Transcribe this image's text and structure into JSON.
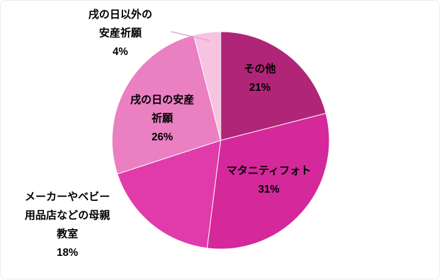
{
  "chart_data": {
    "type": "pie",
    "direction": "clockwise",
    "start_angle_deg": 0,
    "unit": "%",
    "background": "#FFFFFF",
    "legend": "none",
    "leader_line_color": "#DFA8CE",
    "slices": [
      {
        "name": "その他",
        "value": 21,
        "color": "#B02577",
        "label_lines": [
          "その他",
          "21%"
        ]
      },
      {
        "name": "マタニティフォト",
        "value": 31,
        "color": "#D4289B",
        "label_lines": [
          "マタニティフォト",
          "31%"
        ]
      },
      {
        "name": "メーカーやベビー用品店などの母親教室",
        "value": 18,
        "color": "#E13AAB",
        "label_lines": [
          "メーカーやベビー",
          "用品店などの母親",
          "教室",
          "18%"
        ]
      },
      {
        "name": "戌の日の安産祈願",
        "value": 26,
        "color": "#EA7FC2",
        "label_lines": [
          "戌の日の安産",
          "祈願",
          "26%"
        ]
      },
      {
        "name": "戌の日以外の安産祈願",
        "value": 4,
        "color": "#F6C3E1",
        "label_lines": [
          "戌の日以外の",
          "安産祈願",
          "4%"
        ]
      }
    ]
  }
}
